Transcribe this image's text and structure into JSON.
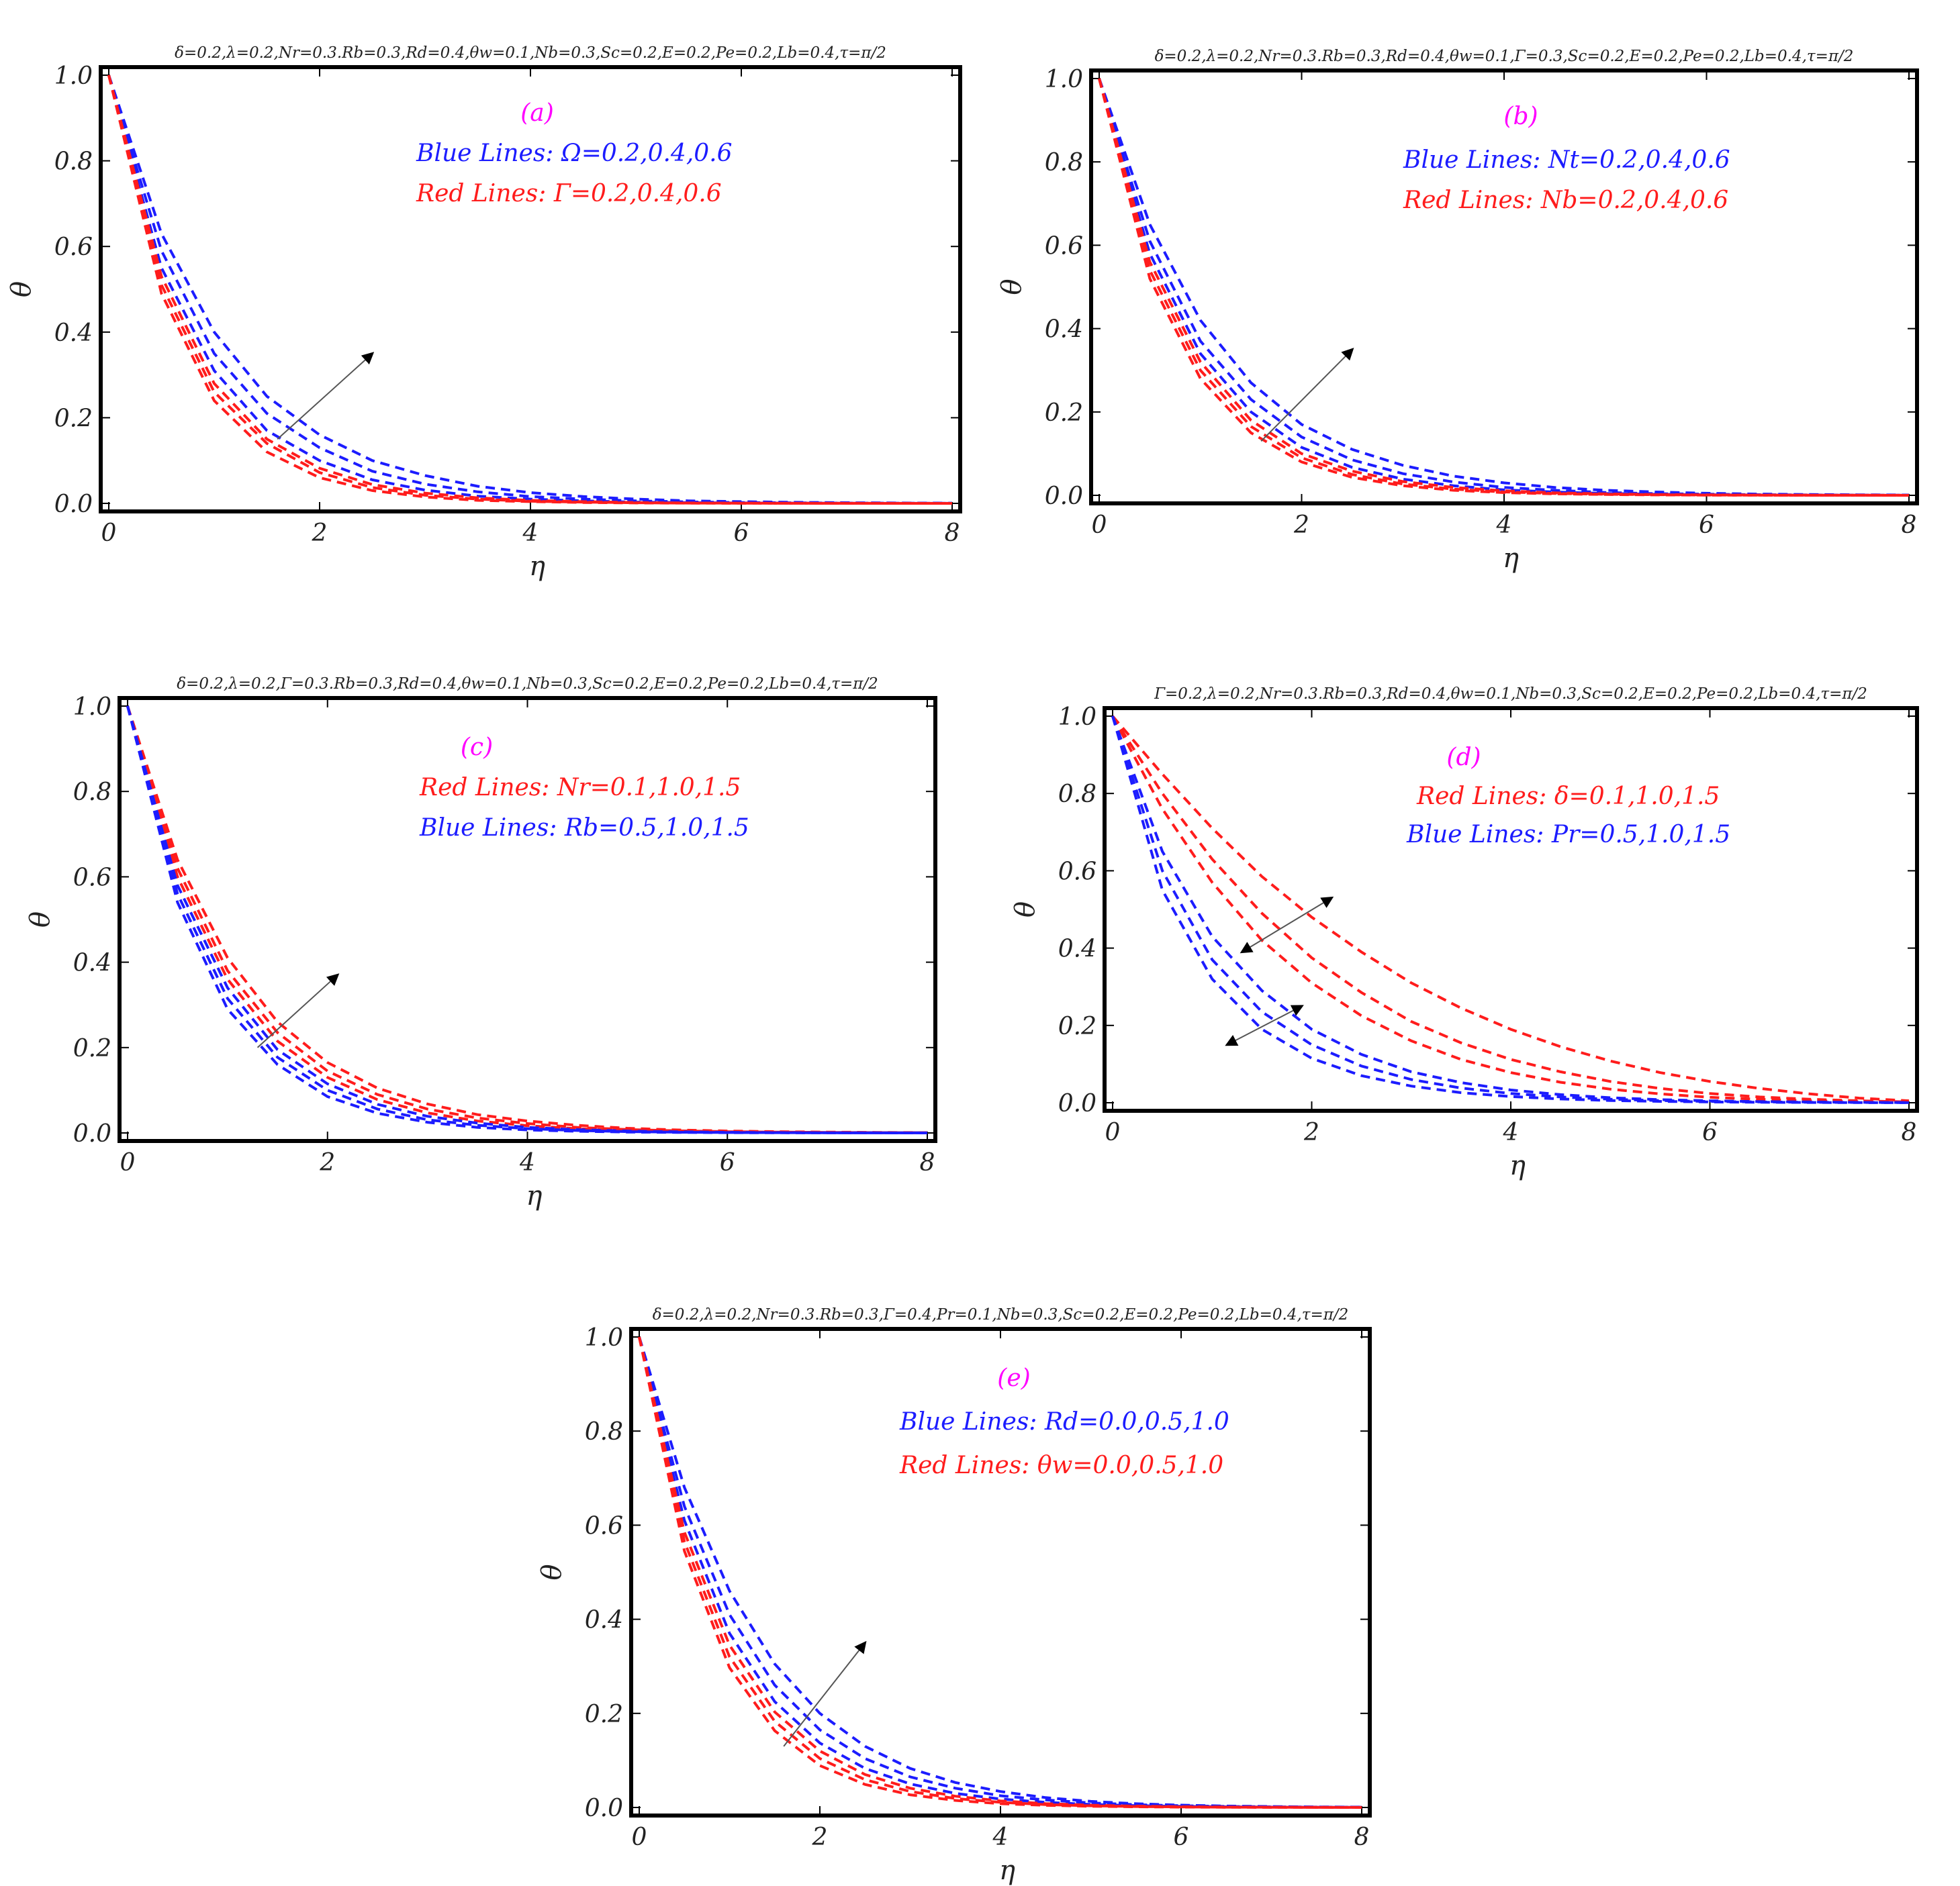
{
  "colors": {
    "blue": "#1c1cff",
    "red": "#ff1c1c",
    "panel_letter": "#ff00ff",
    "frame": "#000000"
  },
  "chart_data": [
    {
      "type": "line",
      "panel": "(a)",
      "condition": "δ=0.2,λ=0.2,Nr=0.3.Rb=0.3,Rd=0.4,θw=0.1,Nb=0.3,Sc=0.2,E=0.2,Pe=0.2,Lb=0.4,τ=π/2",
      "xlabel": "η",
      "ylabel": "θ",
      "xlim": [
        0,
        8
      ],
      "ylim": [
        0,
        1
      ],
      "xticks": [
        "0",
        "2",
        "4",
        "6",
        "8"
      ],
      "yticks": [
        "0.0",
        "0.2",
        "0.4",
        "0.6",
        "0.8",
        "1.0"
      ],
      "legend": [
        {
          "text": "Blue Lines: Ω=0.2,0.4,0.6",
          "color": "blue"
        },
        {
          "text": "Red Lines: Γ=0.2,0.4,0.6",
          "color": "red"
        }
      ],
      "series": [
        {
          "color": "blue",
          "values": [
            1.0,
            0.63,
            0.4,
            0.25,
            0.16,
            0.1,
            0.065,
            0.04,
            0.025,
            0.016,
            0.01,
            0.006,
            0.004,
            0.0025,
            0.0016,
            0.001,
            0.0006
          ]
        },
        {
          "color": "blue",
          "values": [
            1.0,
            0.59,
            0.35,
            0.21,
            0.13,
            0.075,
            0.045,
            0.027,
            0.016,
            0.01,
            0.006,
            0.0035,
            0.002,
            0.0012,
            0.0007,
            0.0004,
            0.0002
          ]
        },
        {
          "color": "blue",
          "values": [
            1.0,
            0.55,
            0.31,
            0.17,
            0.1,
            0.055,
            0.031,
            0.017,
            0.01,
            0.006,
            0.003,
            0.0018,
            0.001,
            0.0006,
            0.0003,
            0.0002,
            0.0001
          ]
        },
        {
          "color": "red",
          "values": [
            1.0,
            0.53,
            0.28,
            0.15,
            0.082,
            0.044,
            0.024,
            0.013,
            0.007,
            0.004,
            0.002,
            0.001,
            0.0006,
            0.0003,
            0.0002,
            0.0001,
            0.0
          ]
        },
        {
          "color": "red",
          "values": [
            1.0,
            0.51,
            0.26,
            0.14,
            0.072,
            0.037,
            0.019,
            0.01,
            0.005,
            0.003,
            0.0014,
            0.0007,
            0.0004,
            0.0002,
            0.0001,
            0.0,
            0.0
          ]
        },
        {
          "color": "red",
          "values": [
            1.0,
            0.49,
            0.24,
            0.12,
            0.06,
            0.03,
            0.015,
            0.007,
            0.004,
            0.002,
            0.001,
            0.0005,
            0.0002,
            0.0001,
            0.0,
            0.0,
            0.0
          ]
        }
      ],
      "x": [
        0,
        0.5,
        1,
        1.5,
        2,
        2.5,
        3,
        3.5,
        4,
        4.5,
        5,
        5.5,
        6,
        6.5,
        7,
        7.5,
        8
      ],
      "arrows": [
        {
          "from": [
            1.6,
            0.15
          ],
          "to": [
            2.5,
            0.35
          ]
        }
      ]
    },
    {
      "type": "line",
      "panel": "(b)",
      "condition": "δ=0.2,λ=0.2,Nr=0.3.Rb=0.3,Rd=0.4,θw=0.1,Γ=0.3,Sc=0.2,E=0.2,Pe=0.2,Lb=0.4,τ=π/2",
      "xlabel": "η",
      "ylabel": "θ",
      "xlim": [
        0,
        8
      ],
      "ylim": [
        0,
        1
      ],
      "xticks": [
        "0",
        "2",
        "4",
        "6",
        "8"
      ],
      "yticks": [
        "0.0",
        "0.2",
        "0.4",
        "0.6",
        "0.8",
        "1.0"
      ],
      "legend": [
        {
          "text": "Blue Lines: Nt=0.2,0.4,0.6",
          "color": "blue"
        },
        {
          "text": "Red Lines: Nb=0.2,0.4,0.6",
          "color": "red"
        }
      ],
      "series": [
        {
          "color": "blue",
          "values": [
            1.0,
            0.65,
            0.42,
            0.27,
            0.17,
            0.11,
            0.072,
            0.046,
            0.03,
            0.019,
            0.012,
            0.008,
            0.005,
            0.003,
            0.002,
            0.0013,
            0.0008
          ]
        },
        {
          "color": "blue",
          "values": [
            1.0,
            0.61,
            0.37,
            0.23,
            0.14,
            0.085,
            0.052,
            0.032,
            0.019,
            0.012,
            0.007,
            0.004,
            0.0027,
            0.0016,
            0.001,
            0.0006,
            0.0004
          ]
        },
        {
          "color": "blue",
          "values": [
            1.0,
            0.58,
            0.34,
            0.2,
            0.115,
            0.067,
            0.039,
            0.023,
            0.013,
            0.008,
            0.0045,
            0.0026,
            0.0015,
            0.0009,
            0.0005,
            0.0003,
            0.0002
          ]
        },
        {
          "color": "red",
          "values": [
            1.0,
            0.56,
            0.32,
            0.18,
            0.1,
            0.058,
            0.033,
            0.019,
            0.011,
            0.006,
            0.0035,
            0.002,
            0.0011,
            0.0006,
            0.0004,
            0.0002,
            0.0001
          ]
        },
        {
          "color": "red",
          "values": [
            1.0,
            0.54,
            0.3,
            0.165,
            0.09,
            0.05,
            0.027,
            0.015,
            0.008,
            0.0045,
            0.0025,
            0.0014,
            0.0007,
            0.0004,
            0.0002,
            0.0001,
            0.0
          ]
        },
        {
          "color": "red",
          "values": [
            1.0,
            0.52,
            0.28,
            0.15,
            0.08,
            0.043,
            0.023,
            0.012,
            0.0065,
            0.0035,
            0.0019,
            0.001,
            0.0005,
            0.0003,
            0.0002,
            0.0001,
            0.0
          ]
        }
      ],
      "x": [
        0,
        0.5,
        1,
        1.5,
        2,
        2.5,
        3,
        3.5,
        4,
        4.5,
        5,
        5.5,
        6,
        6.5,
        7,
        7.5,
        8
      ],
      "arrows": [
        {
          "from": [
            1.6,
            0.13
          ],
          "to": [
            2.5,
            0.35
          ]
        }
      ]
    },
    {
      "type": "line",
      "panel": "(c)",
      "condition": "δ=0.2,λ=0.2,Γ=0.3.Rb=0.3,Rd=0.4,θw=0.1,Nb=0.3,Sc=0.2,E=0.2,Pe=0.2,Lb=0.4,τ=π/2",
      "xlabel": "η",
      "ylabel": "θ",
      "xlim": [
        0,
        8
      ],
      "ylim": [
        0,
        1
      ],
      "xticks": [
        "0",
        "2",
        "4",
        "6",
        "8"
      ],
      "yticks": [
        "0.0",
        "0.2",
        "0.4",
        "0.6",
        "0.8",
        "1.0"
      ],
      "legend": [
        {
          "text": "Red Lines: Nr=0.1,1.0,1.5",
          "color": "red"
        },
        {
          "text": "Blue Lines: Rb=0.5,1.0,1.5",
          "color": "blue"
        }
      ],
      "series": [
        {
          "color": "red",
          "values": [
            1.0,
            0.64,
            0.41,
            0.26,
            0.165,
            0.105,
            0.068,
            0.043,
            0.028,
            0.018,
            0.011,
            0.007,
            0.0045,
            0.003,
            0.002,
            0.0012,
            0.0008
          ]
        },
        {
          "color": "red",
          "values": [
            1.0,
            0.62,
            0.38,
            0.235,
            0.145,
            0.09,
            0.056,
            0.035,
            0.022,
            0.013,
            0.008,
            0.005,
            0.003,
            0.002,
            0.0012,
            0.0008,
            0.0005
          ]
        },
        {
          "color": "red",
          "values": [
            1.0,
            0.6,
            0.36,
            0.215,
            0.13,
            0.078,
            0.047,
            0.028,
            0.017,
            0.01,
            0.006,
            0.0037,
            0.0022,
            0.0013,
            0.0008,
            0.0005,
            0.0003
          ]
        },
        {
          "color": "blue",
          "values": [
            1.0,
            0.58,
            0.34,
            0.195,
            0.115,
            0.067,
            0.039,
            0.023,
            0.013,
            0.0077,
            0.0045,
            0.0026,
            0.0015,
            0.0009,
            0.0005,
            0.0003,
            0.0002
          ]
        },
        {
          "color": "blue",
          "values": [
            1.0,
            0.56,
            0.315,
            0.177,
            0.1,
            0.056,
            0.031,
            0.018,
            0.01,
            0.0056,
            0.0031,
            0.0018,
            0.001,
            0.0006,
            0.0003,
            0.0002,
            0.0001
          ]
        },
        {
          "color": "blue",
          "values": [
            1.0,
            0.54,
            0.29,
            0.16,
            0.085,
            0.046,
            0.025,
            0.013,
            0.007,
            0.004,
            0.002,
            0.0012,
            0.0006,
            0.0003,
            0.0002,
            0.0001,
            0.0
          ]
        }
      ],
      "x": [
        0,
        0.5,
        1,
        1.5,
        2,
        2.5,
        3,
        3.5,
        4,
        4.5,
        5,
        5.5,
        6,
        6.5,
        7,
        7.5,
        8
      ],
      "arrows": [
        {
          "from": [
            1.3,
            0.2
          ],
          "to": [
            2.1,
            0.37
          ]
        }
      ]
    },
    {
      "type": "line",
      "panel": "(d)",
      "condition": "Γ=0.2,λ=0.2,Nr=0.3.Rb=0.3,Rd=0.4,θw=0.1,Nb=0.3,Sc=0.2,E=0.2,Pe=0.2,Lb=0.4,τ=π/2",
      "xlabel": "η",
      "ylabel": "θ",
      "xlim": [
        0,
        8
      ],
      "ylim": [
        0,
        1
      ],
      "xticks": [
        "0",
        "2",
        "4",
        "6",
        "8"
      ],
      "yticks": [
        "0.0",
        "0.2",
        "0.4",
        "0.6",
        "0.8",
        "1.0"
      ],
      "legend": [
        {
          "text": "Red Lines: δ=0.1,1.0,1.5",
          "color": "red"
        },
        {
          "text": "Blue Lines: Pr=0.5,1.0,1.5",
          "color": "blue"
        }
      ],
      "series": [
        {
          "color": "red",
          "values": [
            1.0,
            0.85,
            0.71,
            0.585,
            0.48,
            0.39,
            0.31,
            0.245,
            0.19,
            0.145,
            0.108,
            0.078,
            0.055,
            0.037,
            0.023,
            0.012,
            0.005
          ]
        },
        {
          "color": "red",
          "values": [
            1.0,
            0.8,
            0.63,
            0.49,
            0.375,
            0.285,
            0.21,
            0.155,
            0.112,
            0.08,
            0.055,
            0.037,
            0.024,
            0.015,
            0.009,
            0.005,
            0.002
          ]
        },
        {
          "color": "red",
          "values": [
            1.0,
            0.76,
            0.57,
            0.42,
            0.31,
            0.225,
            0.16,
            0.112,
            0.078,
            0.053,
            0.035,
            0.023,
            0.014,
            0.009,
            0.005,
            0.003,
            0.001
          ]
        },
        {
          "color": "blue",
          "values": [
            1.0,
            0.65,
            0.43,
            0.29,
            0.19,
            0.125,
            0.08,
            0.052,
            0.033,
            0.021,
            0.013,
            0.008,
            0.005,
            0.003,
            0.002,
            0.001,
            0.0005
          ]
        },
        {
          "color": "blue",
          "values": [
            1.0,
            0.6,
            0.37,
            0.235,
            0.15,
            0.095,
            0.06,
            0.038,
            0.024,
            0.015,
            0.009,
            0.0055,
            0.0033,
            0.002,
            0.0012,
            0.0007,
            0.0004
          ]
        },
        {
          "color": "blue",
          "values": [
            1.0,
            0.55,
            0.32,
            0.19,
            0.115,
            0.07,
            0.043,
            0.026,
            0.016,
            0.0097,
            0.0058,
            0.0035,
            0.002,
            0.0012,
            0.0007,
            0.0004,
            0.0002
          ]
        }
      ],
      "x": [
        0,
        0.5,
        1,
        1.5,
        2,
        2.5,
        3,
        3.5,
        4,
        4.5,
        5,
        5.5,
        6,
        6.5,
        7,
        7.5,
        8
      ],
      "arrows": [
        {
          "from": [
            1.3,
            0.39
          ],
          "to": [
            2.2,
            0.53
          ],
          "double": true
        },
        {
          "from": [
            1.9,
            0.25
          ],
          "to": [
            1.15,
            0.15
          ],
          "double": true
        }
      ]
    },
    {
      "type": "line",
      "panel": "(e)",
      "condition": "δ=0.2,λ=0.2,Nr=0.3.Rb=0.3,Γ=0.4,Pr=0.1,Nb=0.3,Sc=0.2,E=0.2,Pe=0.2,Lb=0.4,τ=π/2",
      "xlabel": "η",
      "ylabel": "θ",
      "xlim": [
        0,
        8
      ],
      "ylim": [
        0,
        1
      ],
      "xticks": [
        "0",
        "2",
        "4",
        "6",
        "8"
      ],
      "yticks": [
        "0.0",
        "0.2",
        "0.4",
        "0.6",
        "0.8",
        "1.0"
      ],
      "legend": [
        {
          "text": "Blue Lines: Rd=0.0,0.5,1.0",
          "color": "blue"
        },
        {
          "text": "Red Lines: θw=0.0,0.5,1.0",
          "color": "red"
        }
      ],
      "series": [
        {
          "color": "blue",
          "values": [
            1.0,
            0.68,
            0.46,
            0.305,
            0.2,
            0.13,
            0.083,
            0.053,
            0.034,
            0.021,
            0.013,
            0.008,
            0.005,
            0.003,
            0.002,
            0.0012,
            0.0008
          ]
        },
        {
          "color": "blue",
          "values": [
            1.0,
            0.64,
            0.41,
            0.26,
            0.165,
            0.104,
            0.065,
            0.041,
            0.025,
            0.016,
            0.0097,
            0.006,
            0.0037,
            0.0023,
            0.0014,
            0.0008,
            0.0005
          ]
        },
        {
          "color": "blue",
          "values": [
            1.0,
            0.61,
            0.37,
            0.225,
            0.137,
            0.083,
            0.05,
            0.03,
            0.018,
            0.011,
            0.0066,
            0.004,
            0.0024,
            0.0014,
            0.0009,
            0.0005,
            0.0003
          ]
        },
        {
          "color": "red",
          "values": [
            1.0,
            0.585,
            0.345,
            0.203,
            0.12,
            0.07,
            0.041,
            0.024,
            0.014,
            0.0083,
            0.0049,
            0.0029,
            0.0017,
            0.001,
            0.0006,
            0.0003,
            0.0002
          ]
        },
        {
          "color": "red",
          "values": [
            1.0,
            0.565,
            0.32,
            0.183,
            0.104,
            0.059,
            0.034,
            0.019,
            0.011,
            0.0062,
            0.0035,
            0.002,
            0.0011,
            0.0006,
            0.0004,
            0.0002,
            0.0001
          ]
        },
        {
          "color": "red",
          "values": [
            1.0,
            0.545,
            0.297,
            0.163,
            0.089,
            0.049,
            0.027,
            0.015,
            0.008,
            0.0045,
            0.0025,
            0.0014,
            0.0007,
            0.0004,
            0.0002,
            0.0001,
            0.0
          ]
        }
      ],
      "x": [
        0,
        0.5,
        1,
        1.5,
        2,
        2.5,
        3,
        3.5,
        4,
        4.5,
        5,
        5.5,
        6,
        6.5,
        7,
        7.5,
        8
      ],
      "arrows": [
        {
          "from": [
            1.6,
            0.13
          ],
          "to": [
            2.5,
            0.35
          ]
        }
      ]
    }
  ]
}
